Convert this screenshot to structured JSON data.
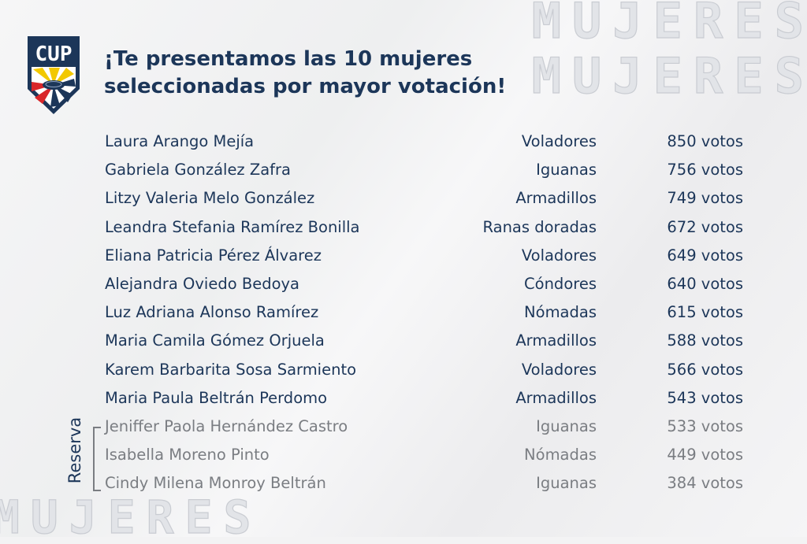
{
  "logo_text": "CUP",
  "watermark": "MUJERES",
  "title_line1": "¡Te presentamos las 10 mujeres",
  "title_line2": "seleccionadas por mayor votación!",
  "reserve_label": "Reserva",
  "colors": {
    "navy": "#1c3659",
    "reserve_gray": "#7a7d82",
    "yellow": "#f2c800",
    "red": "#d9262a"
  },
  "selected": [
    {
      "name": "Laura  Arango Mejía",
      "team": "Voladores",
      "votes": "850 votos"
    },
    {
      "name": "Gabriela González Zafra",
      "team": "Iguanas",
      "votes": "756 votos"
    },
    {
      "name": "Litzy Valeria Melo González",
      "team": "Armadillos",
      "votes": "749 votos"
    },
    {
      "name": "Leandra Stefania Ramírez Bonilla",
      "team": "Ranas doradas",
      "votes": "672 votos"
    },
    {
      "name": "Eliana Patricia Pérez Álvarez",
      "team": "Voladores",
      "votes": "649 votos"
    },
    {
      "name": "Alejandra Oviedo Bedoya",
      "team": "Cóndores",
      "votes": "640 votos"
    },
    {
      "name": "Luz Adriana Alonso Ramírez",
      "team": "Nómadas",
      "votes": "615 votos"
    },
    {
      "name": "Maria Camila Gómez Orjuela",
      "team": "Armadillos",
      "votes": "588 votos"
    },
    {
      "name": "Karem Barbarita Sosa Sarmiento",
      "team": "Voladores",
      "votes": "566 votos"
    },
    {
      "name": "Maria Paula Beltrán Perdomo",
      "team": "Armadillos",
      "votes": "543 votos"
    }
  ],
  "reserves": [
    {
      "name": "Jeniffer Paola Hernández Castro",
      "team": "Iguanas",
      "votes": "533 votos"
    },
    {
      "name": "Isabella Moreno Pinto",
      "team": "Nómadas",
      "votes": "449 votos"
    },
    {
      "name": "Cindy Milena Monroy Beltrán",
      "team": "Iguanas",
      "votes": "384 votos"
    }
  ]
}
